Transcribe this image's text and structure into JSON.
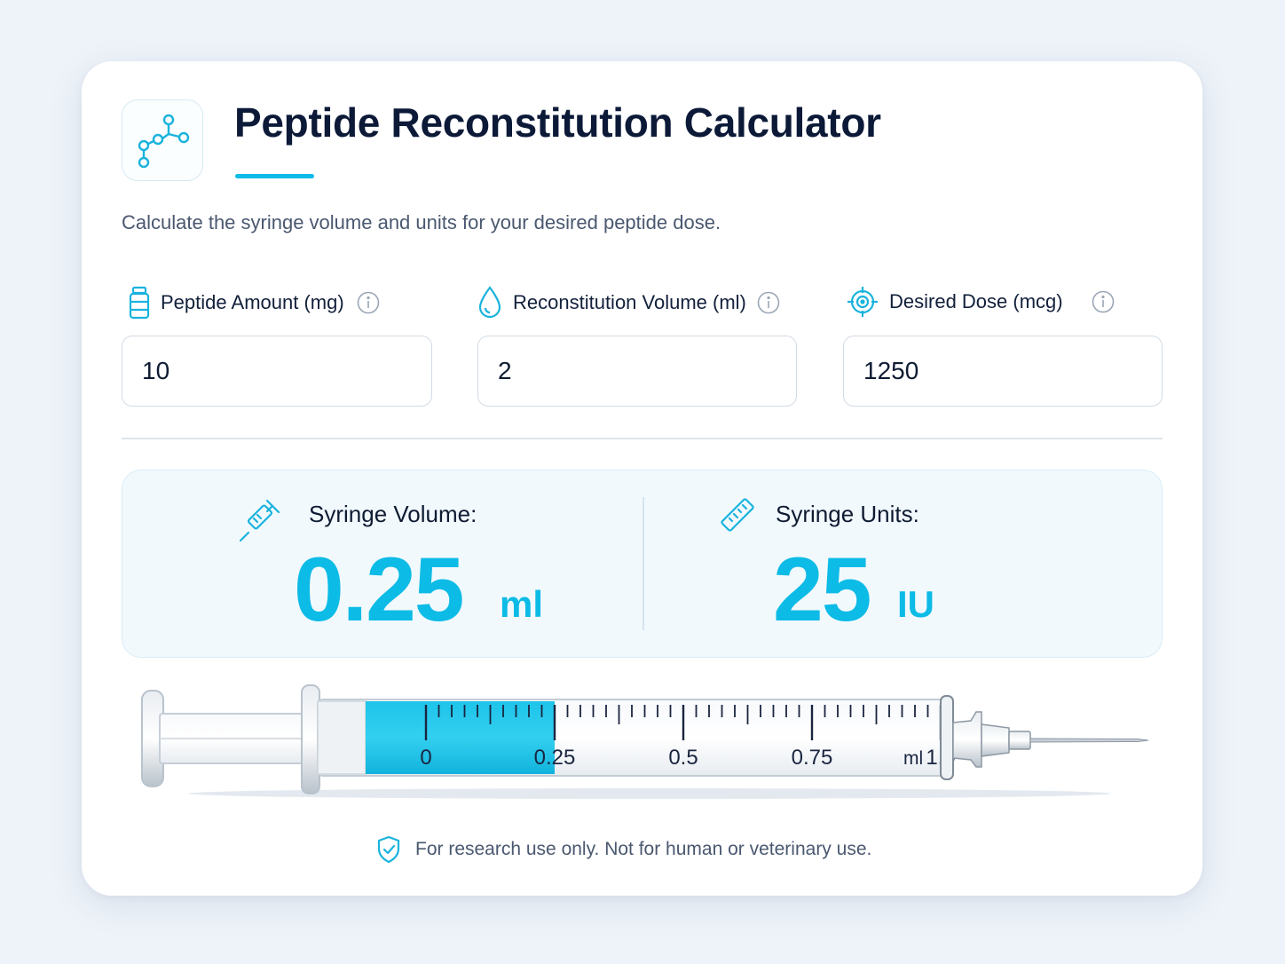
{
  "header": {
    "logo_icon": "molecule-icon",
    "title": "Peptide Reconstitution Calculator",
    "subtitle": "Calculate the syringe volume and units for your desired peptide dose."
  },
  "fields": [
    {
      "icon": "vial-icon",
      "label": "Peptide Amount (mg)",
      "value": "10"
    },
    {
      "icon": "droplet-icon",
      "label": "Reconstitution Volume (ml)",
      "value": "2"
    },
    {
      "icon": "target-icon",
      "label": "Desired Dose (mcg)",
      "value": "1250"
    }
  ],
  "results": {
    "volume": {
      "icon": "syringe-icon",
      "label": "Syringe Volume:",
      "value": "0.25",
      "unit": "ml"
    },
    "units": {
      "icon": "ruler-icon",
      "label": "Syringe Units:",
      "value": "25",
      "unit": "IU"
    }
  },
  "syringe": {
    "scale_labels": [
      "0",
      "0.25",
      "0.5",
      "0.75",
      "1.0"
    ],
    "unit_label": "ml",
    "fill_ml": 0.25,
    "max_ml": 1.0
  },
  "footer": {
    "icon": "shield-check-icon",
    "disclaimer": "For research use only. Not for human or veterinary use."
  },
  "colors": {
    "accent": "#0cbbe6",
    "title": "#0c1a38",
    "muted": "#4a5870"
  }
}
